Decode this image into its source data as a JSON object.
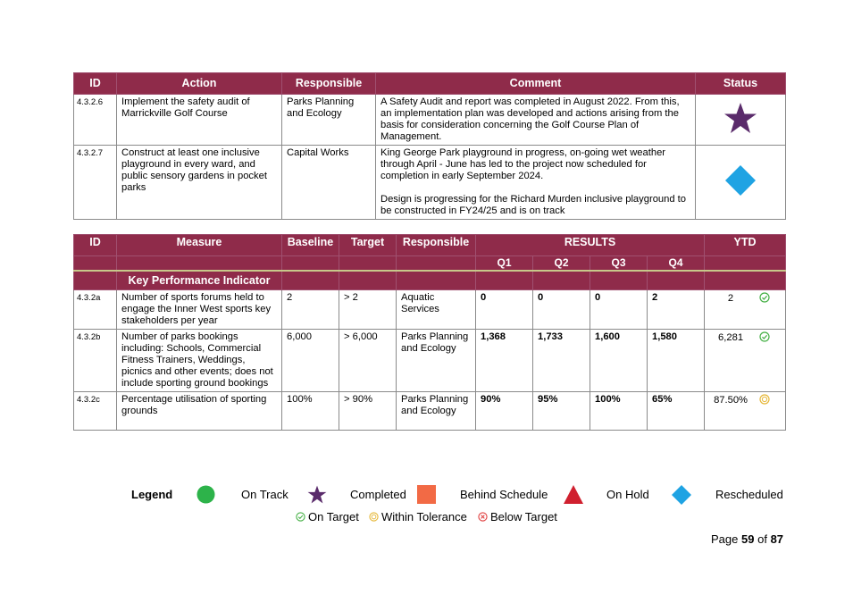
{
  "colors": {
    "header_bg": "#8f2b4a",
    "completed": "#5a2b6b",
    "rescheduled": "#1fa3e3",
    "on_track": "#2db34a",
    "behind_schedule": "#f26a45",
    "on_hold": "#d0202f",
    "on_target": "#45b045",
    "within_tolerance": "#e6b83a",
    "below_target": "#e04040"
  },
  "action_table": {
    "headers": [
      "ID",
      "Action",
      "Responsible",
      "Comment",
      "Status"
    ],
    "rows": [
      {
        "id": "4.3.2.6",
        "action": "Implement the safety audit of Marrickville Golf Course",
        "responsible": "Parks Planning and Ecology",
        "comment": [
          "A Safety Audit and report was completed in August 2022. From this, an implementation plan was developed and actions arising from the basis for consideration concerning the Golf Course Plan of Management."
        ],
        "status": "Completed",
        "status_icon": "star-icon"
      },
      {
        "id": "4.3.2.7",
        "action": "Construct at least one inclusive playground in every ward, and public sensory gardens in pocket parks",
        "responsible": "Capital Works",
        "comment": [
          "King George Park playground in progress, on-going wet weather through April - June has led to the project now scheduled for completion in early September 2024.",
          "Design is progressing for the Richard Murden inclusive playground to be constructed in FY24/25 and is on track"
        ],
        "status": "Rescheduled",
        "status_icon": "diamond-icon"
      }
    ]
  },
  "kpi_table": {
    "headers": {
      "id": "ID",
      "measure": "Measure",
      "baseline": "Baseline",
      "target": "Target",
      "responsible": "Responsible",
      "results": "RESULTS",
      "ytd": "YTD",
      "kpi": "Key Performance Indicator"
    },
    "quarters": [
      "Q1",
      "Q2",
      "Q3",
      "Q4"
    ],
    "rows": [
      {
        "id": "4.3.2a",
        "measure": "Number of sports forums held to engage the Inner West sports key stakeholders per year",
        "baseline": "2",
        "target": "> 2",
        "responsible": "Aquatic Services",
        "q": [
          "0",
          "0",
          "0",
          "2"
        ],
        "ytd": "2",
        "ytd_status": "On Target"
      },
      {
        "id": "4.3.2b",
        "measure": "Number of parks bookings including: Schools, Commercial Fitness Trainers, Weddings, picnics and other events; does not include sporting ground bookings",
        "baseline": "6,000",
        "target": "> 6,000",
        "responsible": "Parks Planning and Ecology",
        "q": [
          "1,368",
          "1,733",
          "1,600",
          "1,580"
        ],
        "ytd": "6,281",
        "ytd_status": "On Target"
      },
      {
        "id": "4.3.2c",
        "measure": "Percentage utilisation of sporting grounds",
        "baseline": "100%",
        "target": "> 90%",
        "responsible": "Parks Planning and Ecology",
        "q": [
          "90%",
          "95%",
          "100%",
          "65%"
        ],
        "ytd": "87.50%",
        "ytd_status": "Within Tolerance"
      }
    ]
  },
  "legend": {
    "title": "Legend",
    "items": [
      "On Track",
      "Completed",
      "Behind Schedule",
      "On Hold",
      "Rescheduled"
    ],
    "kpi_items": [
      "On Target",
      "Within Tolerance",
      "Below Target"
    ]
  },
  "footer": {
    "page_label": "Page",
    "page_current": "59",
    "page_of": "of",
    "page_total": "87"
  }
}
